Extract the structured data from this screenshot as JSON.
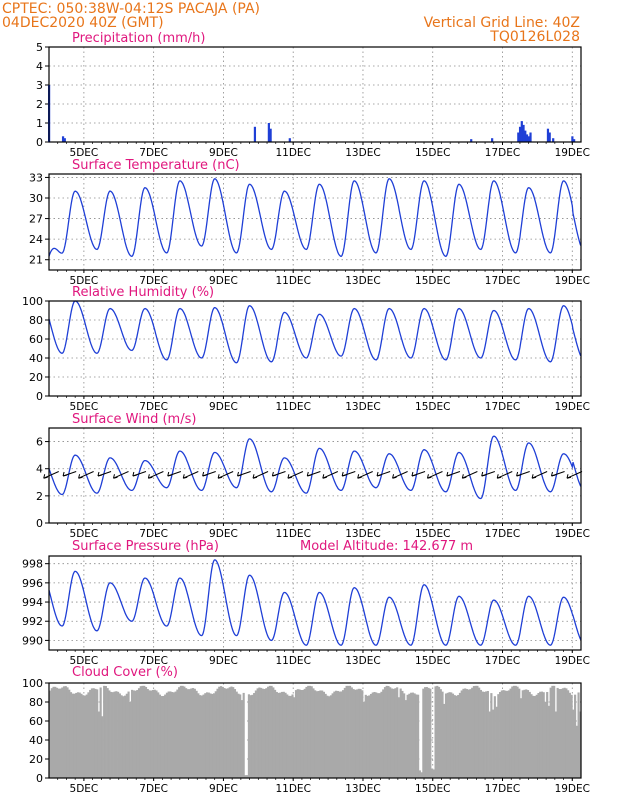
{
  "header": {
    "line1": "CPTEC:   050:38W-04:12S   PACAJA (PA)",
    "line2": "04DEC2020 40Z (GMT)",
    "right1": "Vertical Grid Line: 40Z",
    "right2": "TQ0126L028"
  },
  "colors": {
    "header": "#e8751a",
    "title": "#e0177e",
    "series": "#1f3fd6",
    "cloud": "#a9a9a9",
    "wind": "#000000"
  },
  "x_ticks": [
    "5DEC",
    "7DEC",
    "9DEC",
    "11DEC",
    "13DEC",
    "15DEC",
    "17DEC",
    "19DEC"
  ],
  "chart_data": [
    {
      "type": "bar",
      "title": "Precipitation (mm/h)",
      "ylim": [
        0,
        5
      ],
      "yticks": [
        "0",
        "1",
        "2",
        "3",
        "4",
        "5"
      ],
      "x_unit": "days since 04DEC2020 00Z",
      "bars": [
        [
          0.0,
          3.0
        ],
        [
          0.4,
          0.3
        ],
        [
          0.45,
          0.2
        ],
        [
          5.9,
          0.8
        ],
        [
          6.3,
          1.0
        ],
        [
          6.35,
          0.7
        ],
        [
          6.9,
          0.2
        ],
        [
          12.1,
          0.15
        ],
        [
          12.7,
          0.2
        ],
        [
          13.45,
          0.5
        ],
        [
          13.5,
          0.8
        ],
        [
          13.55,
          1.1
        ],
        [
          13.6,
          0.9
        ],
        [
          13.65,
          0.6
        ],
        [
          13.7,
          0.4
        ],
        [
          13.75,
          0.3
        ],
        [
          13.8,
          0.5
        ],
        [
          14.3,
          0.7
        ],
        [
          14.35,
          0.5
        ],
        [
          14.45,
          0.2
        ],
        [
          15.0,
          0.3
        ],
        [
          15.05,
          0.15
        ]
      ]
    },
    {
      "type": "line",
      "title": "Surface Temperature (nC)",
      "ylim": [
        19.5,
        33.5
      ],
      "yticks": [
        "21",
        "24",
        "27",
        "30",
        "33"
      ],
      "ytick_values": [
        21,
        24,
        27,
        30,
        33
      ],
      "maxima": [
        31.0,
        31.0,
        31.5,
        32.5,
        32.8,
        32.0,
        31.0,
        32.0,
        32.5,
        32.8,
        32.5,
        32.0,
        32.5,
        31.5,
        32.5
      ],
      "minima": [
        22.0,
        22.5,
        21.5,
        22.0,
        23.0,
        22.0,
        22.5,
        22.5,
        21.5,
        22.0,
        22.5,
        21.5,
        22.5,
        22.0,
        22.0
      ],
      "start": 21.5
    },
    {
      "type": "line",
      "title": "Relative Humidity (%)",
      "ylim": [
        0,
        100
      ],
      "yticks": [
        "0",
        "20",
        "40",
        "60",
        "80",
        "100"
      ],
      "ytick_values": [
        0,
        20,
        40,
        60,
        80,
        100
      ],
      "maxima": [
        100,
        92,
        92,
        92,
        93,
        95,
        88,
        86,
        92,
        92,
        92,
        92,
        90,
        92,
        95
      ],
      "minima": [
        45,
        45,
        48,
        38,
        40,
        35,
        36,
        40,
        42,
        38,
        40,
        38,
        40,
        38,
        36
      ]
    },
    {
      "type": "line",
      "title": "Surface Wind (m/s)",
      "ylim": [
        0,
        7
      ],
      "yticks": [
        "0",
        "2",
        "4",
        "6"
      ],
      "ytick_values": [
        0,
        2,
        4,
        6
      ],
      "maxima": [
        5.0,
        4.8,
        4.6,
        5.3,
        5.2,
        6.2,
        4.8,
        5.5,
        5.3,
        5.1,
        5.4,
        5.2,
        6.4,
        5.9,
        5.1
      ],
      "minima": [
        2.1,
        2.2,
        2.4,
        2.6,
        2.4,
        2.6,
        2.3,
        2.2,
        2.4,
        2.6,
        2.4,
        2.3,
        1.8,
        2.4,
        2.3
      ]
    },
    {
      "type": "line",
      "title": "Surface Pressure (hPa)",
      "annotation": "Model Altitude: 142.677 m",
      "ylim": [
        989,
        998.8
      ],
      "yticks": [
        "990",
        "992",
        "994",
        "996",
        "998"
      ],
      "ytick_values": [
        990,
        992,
        994,
        996,
        998
      ],
      "maxima": [
        997.2,
        996.0,
        996.5,
        996.5,
        998.4,
        996.8,
        995.0,
        995.0,
        995.5,
        994.5,
        995.8,
        994.6,
        994.2,
        994.6,
        994.5
      ],
      "minima": [
        991.5,
        991.0,
        992.0,
        991.5,
        990.5,
        990.5,
        990.0,
        989.5,
        989.5,
        989.5,
        989.5,
        989.5,
        989.5,
        989.5,
        989.5
      ]
    },
    {
      "type": "area",
      "title": "Cloud Cover (%)",
      "ylim": [
        0,
        100
      ],
      "yticks": [
        "0",
        "20",
        "40",
        "60",
        "80",
        "100"
      ],
      "ytick_values": [
        0,
        20,
        40,
        60,
        80,
        100
      ],
      "level": 92,
      "dips": [
        [
          1.4,
          70
        ],
        [
          1.5,
          65
        ],
        [
          2.3,
          80
        ],
        [
          5.5,
          82
        ],
        [
          5.6,
          4
        ],
        [
          5.62,
          3
        ],
        [
          7.0,
          85
        ],
        [
          9.0,
          80
        ],
        [
          10.0,
          85
        ],
        [
          10.2,
          82
        ],
        [
          10.6,
          8
        ],
        [
          10.65,
          6
        ],
        [
          10.95,
          10
        ],
        [
          11.0,
          9
        ],
        [
          11.3,
          78
        ],
        [
          12.6,
          70
        ],
        [
          12.7,
          72
        ],
        [
          12.8,
          75
        ],
        [
          13.5,
          84
        ],
        [
          14.2,
          80
        ],
        [
          14.3,
          76
        ],
        [
          14.5,
          70
        ],
        [
          15.0,
          72
        ],
        [
          15.1,
          55
        ],
        [
          15.2,
          70
        ]
      ]
    }
  ]
}
